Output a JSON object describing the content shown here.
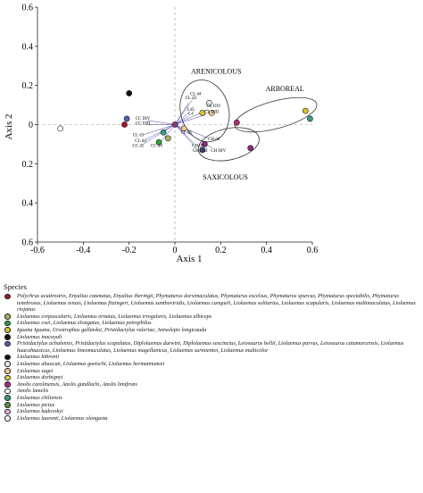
{
  "chart_data": {
    "type": "scatter",
    "xlabel": "Axis 1",
    "ylabel": "Axis 2",
    "xlim": [
      -0.6,
      0.6
    ],
    "ylim": [
      -0.6,
      0.6
    ],
    "xticks": [
      "-0.6",
      "-0.4",
      "-0.2",
      "0",
      "0.2",
      "0.4",
      "0.6"
    ],
    "yticks": [
      "0.6",
      "0.4",
      "0.2",
      "0",
      "0.2",
      "0.4",
      "0.6"
    ],
    "grid": false,
    "dashed_zero_lines": true,
    "points": [
      {
        "x": -0.5,
        "y": -0.02,
        "color": "#ffffff"
      },
      {
        "x": -0.2,
        "y": 0.16,
        "color": "#111111"
      },
      {
        "x": -0.21,
        "y": 0.03,
        "color": "#5060b0"
      },
      {
        "x": -0.22,
        "y": 0.0,
        "color": "#9a1a28"
      },
      {
        "x": 0.27,
        "y": 0.01,
        "color": "#b0287a"
      },
      {
        "x": 0.57,
        "y": 0.07,
        "color": "#d8c030"
      },
      {
        "x": 0.59,
        "y": 0.03,
        "color": "#3a9a88"
      },
      {
        "x": 0.33,
        "y": -0.12,
        "color": "#8a2a80"
      },
      {
        "x": 0.15,
        "y": 0.11,
        "color": "#e8e8f0"
      },
      {
        "x": 0.12,
        "y": 0.06,
        "color": "#d8c030"
      },
      {
        "x": 0.16,
        "y": 0.06,
        "color": "#f0c890"
      },
      {
        "x": -0.05,
        "y": -0.04,
        "color": "#3a9a88"
      },
      {
        "x": -0.03,
        "y": -0.07,
        "color": "#a8b060"
      },
      {
        "x": -0.07,
        "y": -0.09,
        "color": "#30a040"
      },
      {
        "x": 0.0,
        "y": 0.0,
        "color": "#8a3a70"
      },
      {
        "x": 0.04,
        "y": -0.02,
        "color": "#f0c890"
      },
      {
        "x": 0.13,
        "y": -0.1,
        "color": "#8a2a80"
      },
      {
        "x": 0.12,
        "y": -0.13,
        "color": "#5a5090"
      }
    ],
    "point_labels": [
      {
        "text": "CL d4",
        "x": 0.09,
        "y": 0.15
      },
      {
        "text": "CL d3",
        "x": 0.07,
        "y": 0.13
      },
      {
        "text": "CL DIV",
        "x": 0.17,
        "y": 0.09
      },
      {
        "text": "Ld5",
        "x": 0.07,
        "y": 0.07
      },
      {
        "text": "CL DIII",
        "x": 0.16,
        "y": 0.06
      },
      {
        "text": "L4",
        "x": 0.07,
        "y": 0.05
      },
      {
        "text": "CC DIV",
        "x": -0.14,
        "y": 0.025
      },
      {
        "text": "CC DIII",
        "x": -0.14,
        "y": 0.0
      },
      {
        "text": "CL d5",
        "x": 0.05,
        "y": -0.045
      },
      {
        "text": "CL d3",
        "x": -0.16,
        "y": -0.06
      },
      {
        "text": "CL d4",
        "x": -0.15,
        "y": -0.09
      },
      {
        "text": "CC d5",
        "x": -0.16,
        "y": -0.115
      },
      {
        "text": "CC d4",
        "x": -0.08,
        "y": -0.115
      },
      {
        "text": "CH d4",
        "x": 0.17,
        "y": -0.08
      },
      {
        "text": "CH d3",
        "x": 0.1,
        "y": -0.115
      },
      {
        "text": "CH DIII",
        "x": 0.11,
        "y": -0.14
      },
      {
        "text": "CH DIV",
        "x": 0.19,
        "y": -0.14
      }
    ],
    "group_labels": [
      {
        "text": "ARENICOLOUS",
        "x": 0.18,
        "y": 0.26
      },
      {
        "text": "ARBOREAL",
        "x": 0.48,
        "y": 0.17
      },
      {
        "text": "SAXICOLOUS",
        "x": 0.22,
        "y": -0.28
      }
    ]
  },
  "legend": {
    "title": "Species",
    "items": [
      {
        "color": "#9a1a28",
        "text": "Polychrus acutirostris, Enyalius catenatus, Enyalius iheringii, Phymaturus dorsimaculatus, Phymaturus excelsus, Phymaturus spurcus, Phymaturus spectabilis, Phymaturus tenebrosus, Liolaemus tenuis, Liolaemus fitzingeri, Liolaemus xanthoviridis, Liolaemus canqueli, Liolaemus solitarius, Liolaemus scapularis, Liolaemus multimaculatus, Liolaemus riojanus"
      },
      {
        "color": "#a8b060",
        "text": "Liolaemus crepuscularis, Liolaemus ornatus, Liolaemus irregularis, Liolaemus albiceps"
      },
      {
        "color": "#30a040",
        "text": "Liolaemus coei, Liolaemus elongatus, Liolaemus petrophilus"
      },
      {
        "color": "#d8c030",
        "text": "Iguana Iguana, Urostrophus gallardoi, Pristidactylus valeriae, Anisolepis longicauda"
      },
      {
        "color": "#111111",
        "text": "Liolaemus inacayali"
      },
      {
        "color": "#5060b0",
        "text": "Pristidactylus achalensis, Pristidactylus scapulatus, Diplolaemus darwini, Diplolaemus sexcinctus, Leiosaurus bellii, Liolaemus parvus, Leiosaurus catamarcensis, Liolaemus huacahuasicus, Liolaemus lineomaculatus, Liolaemus magellanicus, Liolaemus sarmientoi, Liolaemus multicolor"
      },
      {
        "color": "#111111",
        "text": "Liolaemus bibronii"
      },
      {
        "color": "#e8e8f0",
        "text": "Liolaemus abaucan, Liolaemus goetschi, Liolaemus hermannunezi"
      },
      {
        "color": "#f0c890",
        "text": "Liolaemus sagei"
      },
      {
        "color": "#d8d040",
        "text": "Liolaemus dorbignyi"
      },
      {
        "color": "#b0287a",
        "text": "Anolis carolinensis, Anolis gundlachi, Anolis limifrons"
      },
      {
        "color": "#ffffff",
        "text": "Anolis lamelis"
      },
      {
        "color": "#3a9a88",
        "text": "Liolaemus chiliensis"
      },
      {
        "color": "#5a9040",
        "text": "Liolaemus pictus"
      },
      {
        "color": "#e8b0d8",
        "text": "Liolaemus kadovskyi"
      },
      {
        "color": "#f8f8f8",
        "text": "Liolaemus laurenti, Liolaemus olongasta"
      }
    ]
  }
}
